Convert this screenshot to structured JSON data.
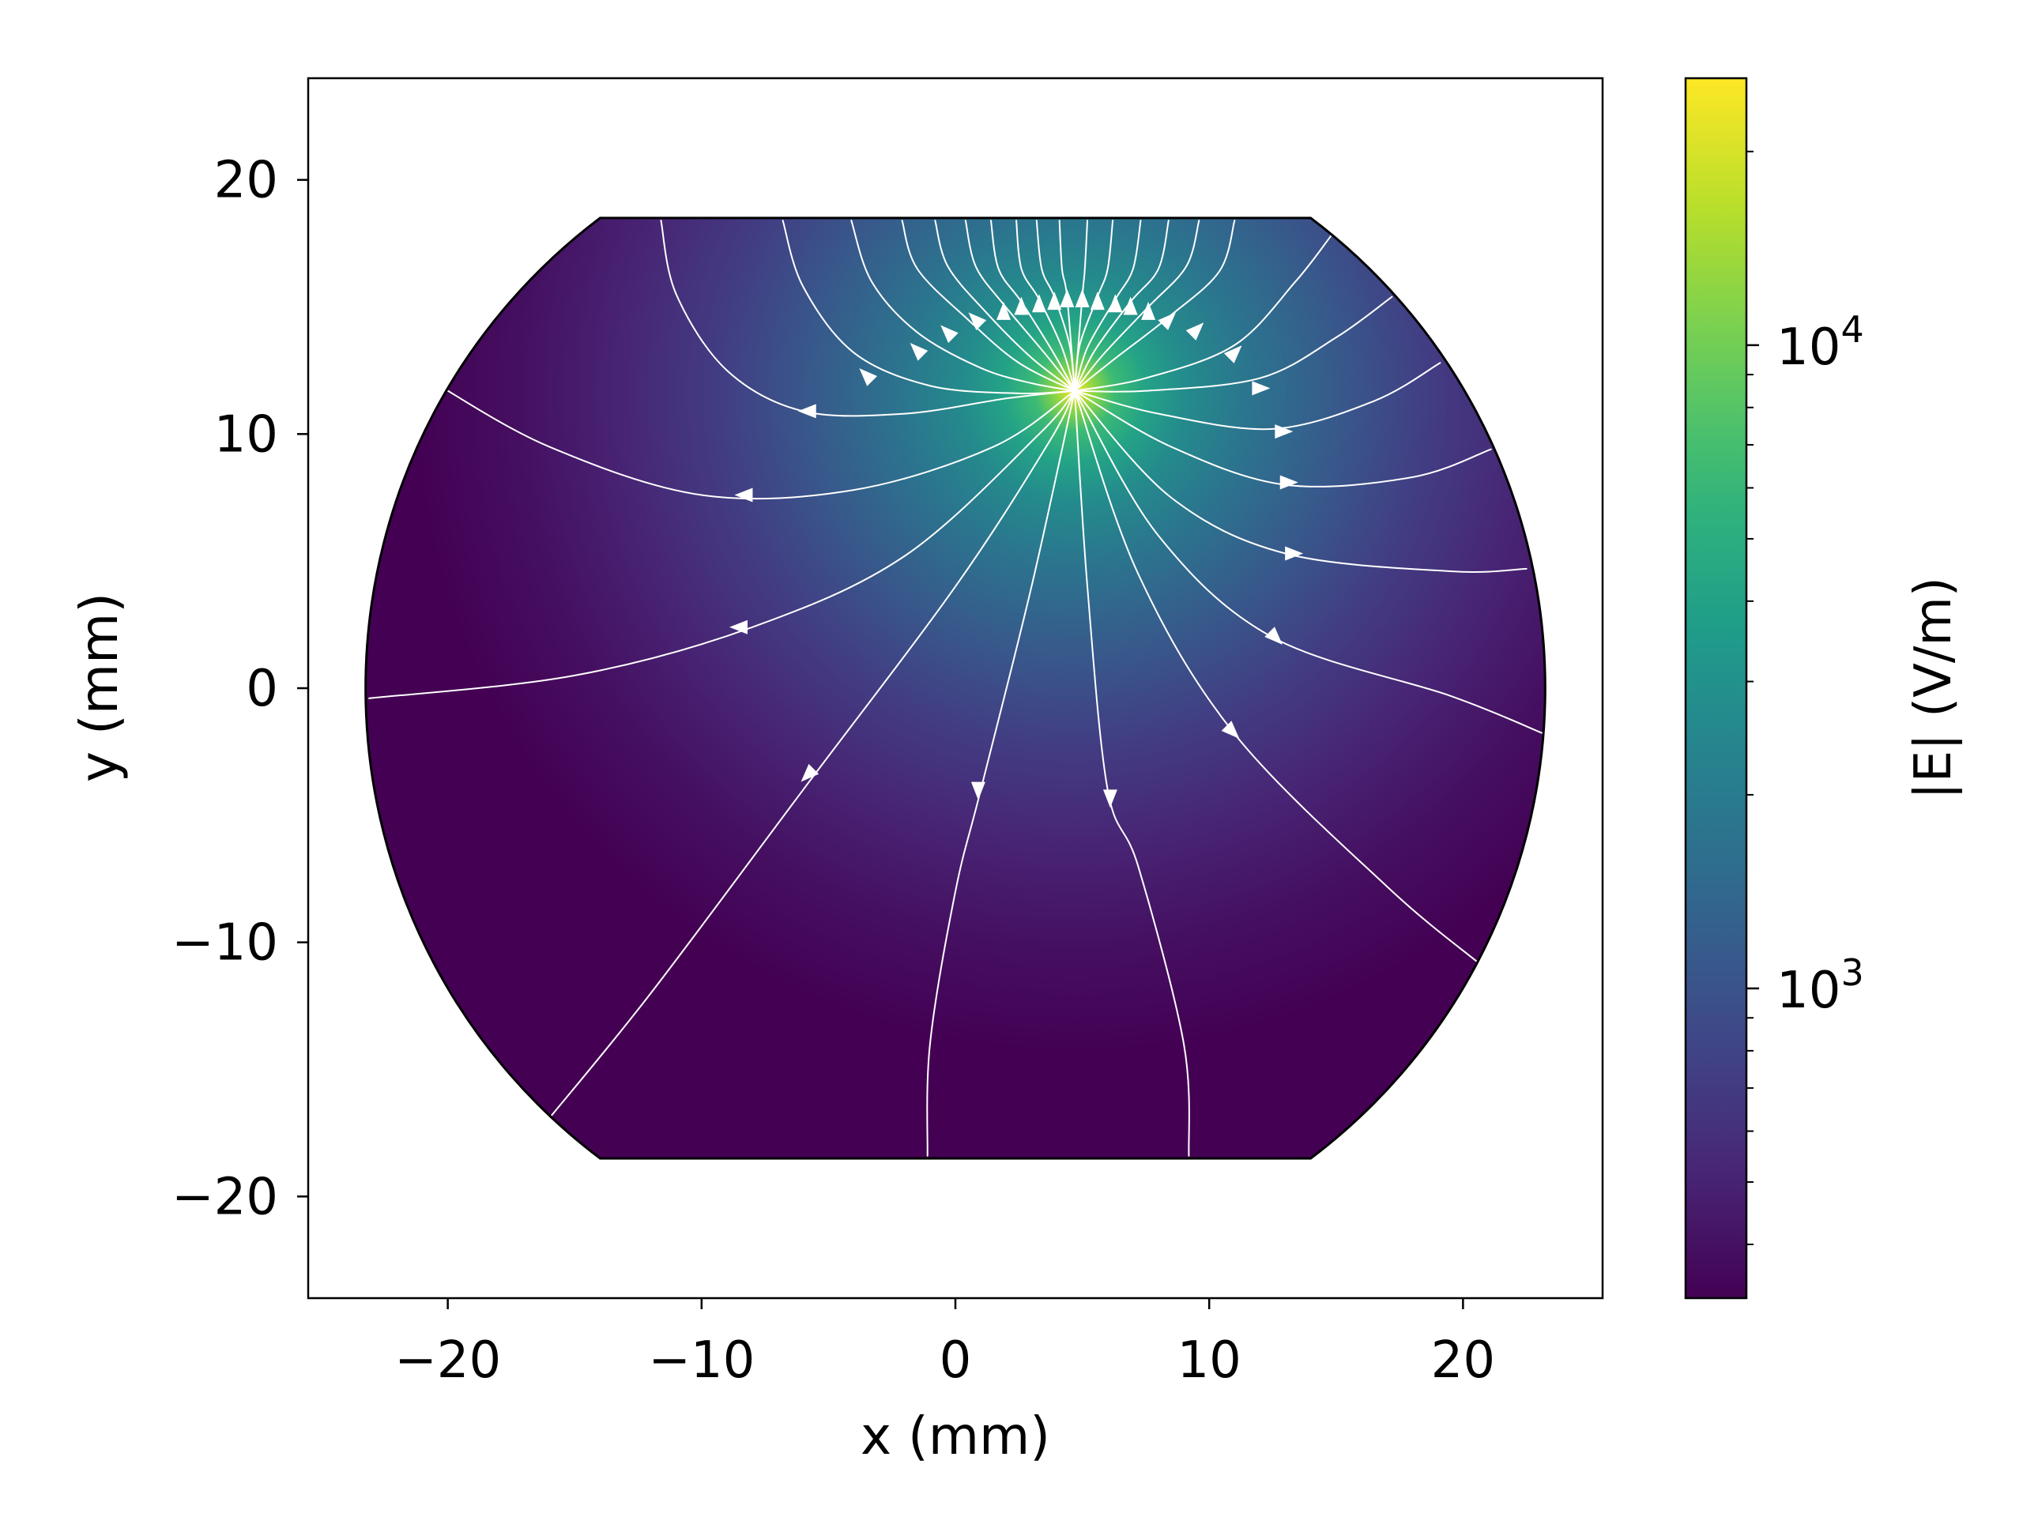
{
  "chart_data": {
    "type": "heatmap",
    "subtype": "electric field magnitude with field streamlines",
    "xlabel": "x (mm)",
    "ylabel": "y (mm)",
    "xlim": [
      -25.5,
      25.5
    ],
    "ylim": [
      -24,
      24
    ],
    "x_ticks": [
      -20,
      -10,
      0,
      10,
      20
    ],
    "y_ticks": [
      -20,
      -10,
      0,
      10,
      20
    ],
    "x_tick_labels": [
      "−20",
      "−10",
      "0",
      "10",
      "20"
    ],
    "y_tick_labels": [
      "−20",
      "−10",
      "0",
      "10",
      "20"
    ],
    "grid": false,
    "domain": {
      "shape": "disk truncated by horizontal lines",
      "radius": 23.2,
      "y_top": 18.5,
      "y_bottom": -18.5
    },
    "field_peak": {
      "x": 4.7,
      "y": 11.7
    },
    "colorbar": {
      "label": "|E| (V/m)",
      "scale": "log",
      "range": [
        330,
        26000
      ],
      "colormap": "viridis",
      "major_ticks": [
        {
          "value": 1000,
          "base": "10",
          "exp": "3"
        },
        {
          "value": 10000,
          "base": "10",
          "exp": "4"
        }
      ],
      "minor_ticks": [
        400,
        500,
        600,
        700,
        800,
        900,
        2000,
        3000,
        4000,
        5000,
        6000,
        7000,
        8000,
        9000,
        20000
      ]
    },
    "streamlines": [
      [
        [
          -11.6,
          18.4
        ],
        [
          -11,
          15.5
        ],
        [
          -9,
          12.5
        ],
        [
          -6,
          10.9
        ],
        [
          -2,
          10.8
        ],
        [
          2,
          11.4
        ],
        [
          4.7,
          11.7
        ]
      ],
      [
        [
          -6.8,
          18.4
        ],
        [
          -6,
          15.8
        ],
        [
          -4,
          13.2
        ],
        [
          -1,
          11.9
        ],
        [
          2.5,
          11.6
        ],
        [
          4.7,
          11.7
        ]
      ],
      [
        [
          -4.1,
          18.4
        ],
        [
          -3.3,
          16
        ],
        [
          -1.5,
          14
        ],
        [
          1,
          12.6
        ],
        [
          3,
          12
        ],
        [
          4.7,
          11.7
        ]
      ],
      [
        [
          -2.1,
          18.4
        ],
        [
          -1.5,
          16.5
        ],
        [
          0.5,
          14.5
        ],
        [
          2.5,
          12.8
        ],
        [
          4.7,
          11.7
        ]
      ],
      [
        [
          -0.8,
          18.4
        ],
        [
          -0.3,
          16.6
        ],
        [
          1.2,
          14.8
        ],
        [
          3,
          13
        ],
        [
          4.7,
          11.7
        ]
      ],
      [
        [
          0.4,
          18.4
        ],
        [
          0.8,
          16.6
        ],
        [
          1.9,
          15.1
        ],
        [
          3.5,
          13.2
        ],
        [
          4.7,
          11.7
        ]
      ],
      [
        [
          1.4,
          18.4
        ],
        [
          1.7,
          16.5
        ],
        [
          2.6,
          15.2
        ],
        [
          3.8,
          13.3
        ],
        [
          4.7,
          11.7
        ]
      ],
      [
        [
          2.4,
          18.4
        ],
        [
          2.6,
          16.5
        ],
        [
          3.3,
          15.3
        ],
        [
          4.2,
          13.4
        ],
        [
          4.7,
          11.7
        ]
      ],
      [
        [
          3.2,
          18.4
        ],
        [
          3.4,
          16.5
        ],
        [
          3.9,
          15.4
        ],
        [
          4.5,
          13.5
        ],
        [
          4.7,
          11.7
        ]
      ],
      [
        [
          4.1,
          18.4
        ],
        [
          4.2,
          16.5
        ],
        [
          4.4,
          15.4
        ],
        [
          4.7,
          11.7
        ]
      ],
      [
        [
          5.2,
          18.4
        ],
        [
          5.1,
          16.5
        ],
        [
          5,
          15.4
        ],
        [
          4.7,
          11.7
        ]
      ],
      [
        [
          6.2,
          18.4
        ],
        [
          6.0,
          16.5
        ],
        [
          5.6,
          15.4
        ],
        [
          4.9,
          13.5
        ],
        [
          4.7,
          11.7
        ]
      ],
      [
        [
          7.3,
          18.4
        ],
        [
          7.0,
          16.5
        ],
        [
          6.3,
          15.3
        ],
        [
          5.2,
          13.4
        ],
        [
          4.7,
          11.7
        ]
      ],
      [
        [
          8.4,
          18.4
        ],
        [
          8.0,
          16.5
        ],
        [
          6.9,
          15.2
        ],
        [
          5.5,
          13.3
        ],
        [
          4.7,
          11.7
        ]
      ],
      [
        [
          9.6,
          18.4
        ],
        [
          9.1,
          16.6
        ],
        [
          7.6,
          15
        ],
        [
          5.8,
          13.1
        ],
        [
          4.7,
          11.7
        ]
      ],
      [
        [
          11,
          18.4
        ],
        [
          10.4,
          16.4
        ],
        [
          8.4,
          14.6
        ],
        [
          6.2,
          12.9
        ],
        [
          4.7,
          11.7
        ]
      ],
      [
        [
          14.8,
          17.8
        ],
        [
          13.4,
          16
        ],
        [
          11,
          13.5
        ],
        [
          7.5,
          12.2
        ],
        [
          4.7,
          11.7
        ]
      ],
      [
        [
          17.2,
          15.4
        ],
        [
          15,
          13.8
        ],
        [
          12,
          12.2
        ],
        [
          7.5,
          11.7
        ],
        [
          4.7,
          11.7
        ]
      ],
      [
        [
          19.1,
          12.8
        ],
        [
          16.5,
          11.3
        ],
        [
          12.5,
          10.2
        ],
        [
          8,
          10.8
        ],
        [
          4.7,
          11.7
        ]
      ],
      [
        [
          21.1,
          9.4
        ],
        [
          18,
          8.3
        ],
        [
          13,
          8.0
        ],
        [
          8.5,
          9.5
        ],
        [
          4.7,
          11.7
        ]
      ],
      [
        [
          22.5,
          4.7
        ],
        [
          19.5,
          4.6
        ],
        [
          13,
          5.3
        ],
        [
          8.5,
          7.5
        ],
        [
          4.7,
          11.7
        ]
      ],
      [
        [
          23.2,
          -1.8
        ],
        [
          19.5,
          -0.3
        ],
        [
          12.5,
          2.0
        ],
        [
          8,
          6.0
        ],
        [
          4.7,
          11.7
        ]
      ],
      [
        [
          20.6,
          -10.8
        ],
        [
          17,
          -7.8
        ],
        [
          11,
          -1.8
        ],
        [
          7.2,
          4.5
        ],
        [
          4.7,
          11.7
        ]
      ],
      [
        [
          9.2,
          -18.4
        ],
        [
          9,
          -14
        ],
        [
          7.2,
          -7
        ],
        [
          6,
          -4
        ],
        [
          5.2,
          4
        ],
        [
          4.7,
          11.7
        ]
      ],
      [
        [
          -1.1,
          -18.4
        ],
        [
          -1,
          -14
        ],
        [
          0,
          -8
        ],
        [
          1,
          -4
        ],
        [
          3,
          4
        ],
        [
          4.7,
          11.7
        ]
      ],
      [
        [
          -15.9,
          -16.8
        ],
        [
          -12,
          -12
        ],
        [
          -6,
          -4
        ],
        [
          0,
          4
        ],
        [
          3.7,
          9.7
        ],
        [
          4.7,
          11.7
        ]
      ],
      [
        [
          -23.1,
          -0.4
        ],
        [
          -15,
          0.5
        ],
        [
          -8,
          2.4
        ],
        [
          -2,
          5.2
        ],
        [
          3.3,
          10.0
        ],
        [
          4.7,
          11.7
        ]
      ],
      [
        [
          -20.5,
          12.0
        ],
        [
          -16,
          9.5
        ],
        [
          -10,
          7.6
        ],
        [
          -4,
          7.8
        ],
        [
          1.5,
          9.5
        ],
        [
          4.7,
          11.7
        ]
      ]
    ],
    "streamline_arrows": [
      {
        "x": -5.8,
        "y": 10.9,
        "dir": "left"
      },
      {
        "x": -8.3,
        "y": 7.6,
        "dir": "left"
      },
      {
        "x": -8.5,
        "y": 2.4,
        "dir": "left"
      },
      {
        "x": -5.8,
        "y": -3.4,
        "dir": "down-left"
      },
      {
        "x": 0.9,
        "y": -4.0,
        "dir": "down"
      },
      {
        "x": 6.1,
        "y": -4.3,
        "dir": "down"
      },
      {
        "x": 10.9,
        "y": -1.7,
        "dir": "down-right"
      },
      {
        "x": 12.6,
        "y": 2.0,
        "dir": "down-right"
      },
      {
        "x": 13.3,
        "y": 5.3,
        "dir": "right"
      },
      {
        "x": 13.1,
        "y": 8.1,
        "dir": "right"
      },
      {
        "x": 12.9,
        "y": 10.1,
        "dir": "right"
      },
      {
        "x": 12.0,
        "y": 11.8,
        "dir": "right"
      },
      {
        "x": 11.0,
        "y": 13.2,
        "dir": "up-right"
      },
      {
        "x": -3.5,
        "y": 12.3,
        "dir": "up-left"
      },
      {
        "x": -1.5,
        "y": 13.3,
        "dir": "up-left"
      },
      {
        "x": -0.3,
        "y": 14.0,
        "dir": "up-left"
      },
      {
        "x": 0.8,
        "y": 14.5,
        "dir": "up-left"
      },
      {
        "x": 1.9,
        "y": 14.8,
        "dir": "up"
      },
      {
        "x": 2.6,
        "y": 15.0,
        "dir": "up"
      },
      {
        "x": 3.3,
        "y": 15.1,
        "dir": "up"
      },
      {
        "x": 3.9,
        "y": 15.2,
        "dir": "up"
      },
      {
        "x": 4.4,
        "y": 15.3,
        "dir": "up"
      },
      {
        "x": 5.0,
        "y": 15.3,
        "dir": "up"
      },
      {
        "x": 5.6,
        "y": 15.2,
        "dir": "up"
      },
      {
        "x": 6.3,
        "y": 15.1,
        "dir": "up"
      },
      {
        "x": 6.9,
        "y": 15.0,
        "dir": "up"
      },
      {
        "x": 7.6,
        "y": 14.8,
        "dir": "up"
      },
      {
        "x": 8.4,
        "y": 14.5,
        "dir": "up-right"
      },
      {
        "x": 9.5,
        "y": 14.1,
        "dir": "up-right"
      }
    ]
  }
}
